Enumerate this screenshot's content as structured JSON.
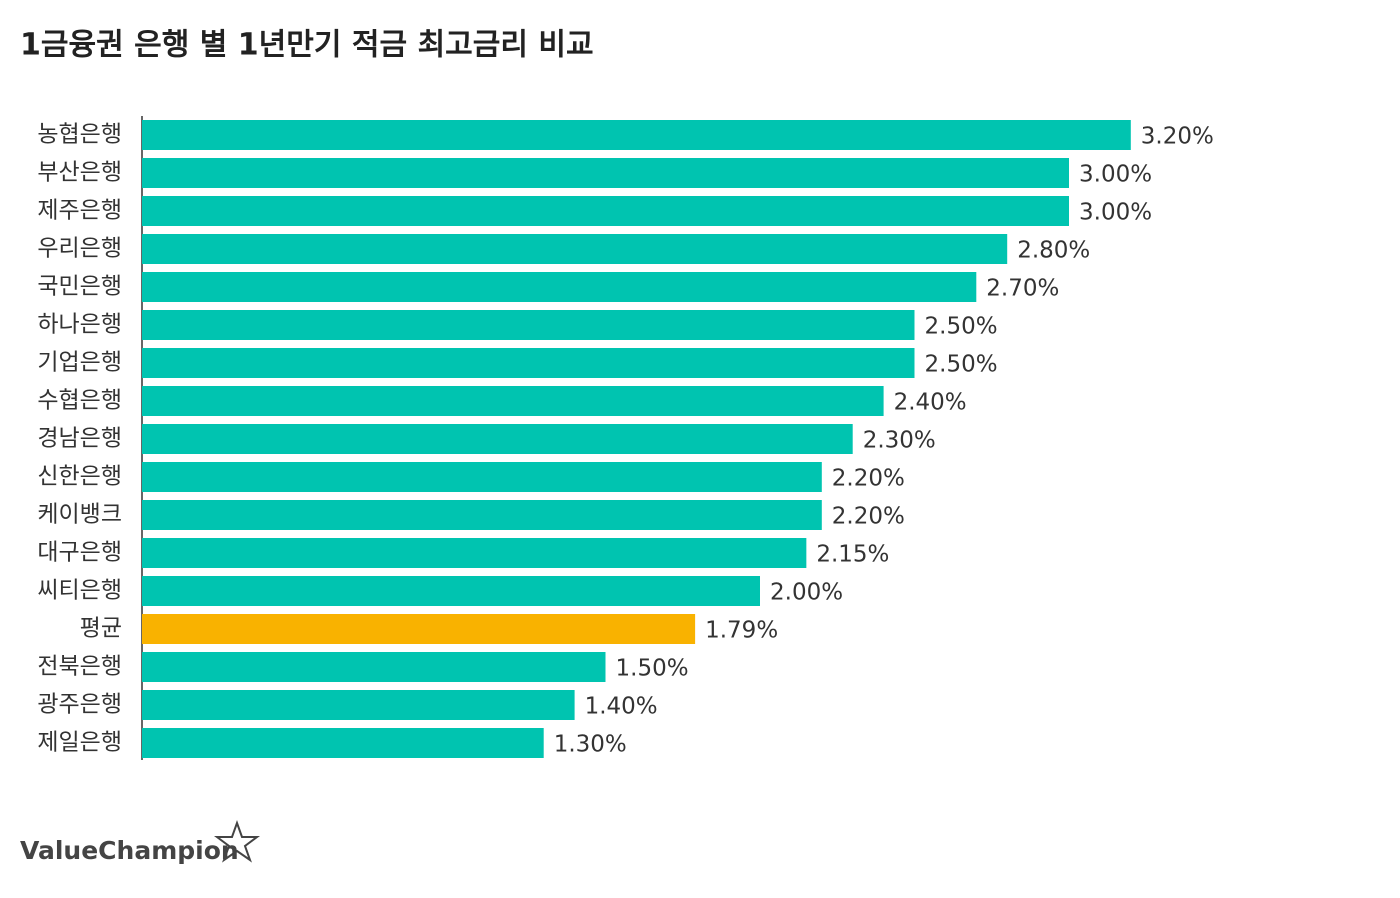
{
  "chart_data": {
    "type": "bar",
    "orientation": "horizontal",
    "title": "1금융권 은행 별 1년만기 적금 최고금리 비교",
    "categories": [
      "농협은행",
      "부산은행",
      "제주은행",
      "우리은행",
      "국민은행",
      "하나은행",
      "기업은행",
      "수협은행",
      "경남은행",
      "신한은행",
      "케이뱅크",
      "대구은행",
      "씨티은행",
      "평균",
      "전북은행",
      "광주은행",
      "제일은행"
    ],
    "values": [
      3.2,
      3.0,
      3.0,
      2.8,
      2.7,
      2.5,
      2.5,
      2.4,
      2.3,
      2.2,
      2.2,
      2.15,
      2.0,
      1.79,
      1.5,
      1.4,
      1.3
    ],
    "value_labels": [
      "3.20%",
      "3.00%",
      "3.00%",
      "2.80%",
      "2.70%",
      "2.50%",
      "2.50%",
      "2.40%",
      "2.30%",
      "2.20%",
      "2.20%",
      "2.15%",
      "2.00%",
      "1.79%",
      "1.50%",
      "1.40%",
      "1.30%"
    ],
    "colors": [
      "#00c4b0",
      "#00c4b0",
      "#00c4b0",
      "#00c4b0",
      "#00c4b0",
      "#00c4b0",
      "#00c4b0",
      "#00c4b0",
      "#00c4b0",
      "#00c4b0",
      "#00c4b0",
      "#00c4b0",
      "#00c4b0",
      "#f9b200",
      "#00c4b0",
      "#00c4b0",
      "#00c4b0"
    ]
  },
  "brand": "ValueChampion"
}
